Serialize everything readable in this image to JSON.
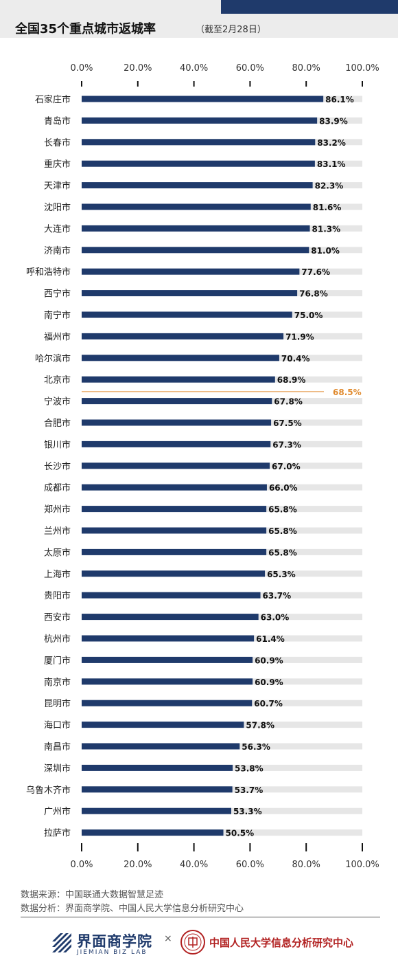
{
  "header": {
    "title": "全国35个重点城市返城率",
    "subtitle": "（截至2月28日）",
    "accent_color": "#1f3a6b"
  },
  "chart_data": {
    "type": "bar",
    "orientation": "horizontal",
    "categories": [
      "石家庄市",
      "青岛市",
      "长春市",
      "重庆市",
      "天津市",
      "沈阳市",
      "大连市",
      "济南市",
      "呼和浩特市",
      "西宁市",
      "南宁市",
      "福州市",
      "哈尔滨市",
      "北京市",
      "宁波市",
      "合肥市",
      "银川市",
      "长沙市",
      "成都市",
      "郑州市",
      "兰州市",
      "太原市",
      "上海市",
      "贵阳市",
      "西安市",
      "杭州市",
      "厦门市",
      "南京市",
      "昆明市",
      "海口市",
      "南昌市",
      "深圳市",
      "乌鲁木齐市",
      "广州市",
      "拉萨市"
    ],
    "values": [
      86.1,
      83.9,
      83.2,
      83.1,
      82.3,
      81.6,
      81.3,
      81.0,
      77.6,
      76.8,
      75.0,
      71.9,
      70.4,
      68.9,
      67.8,
      67.5,
      67.3,
      67.0,
      66.0,
      65.8,
      65.8,
      65.8,
      65.3,
      63.7,
      63.0,
      61.4,
      60.9,
      60.9,
      60.7,
      57.8,
      56.3,
      53.8,
      53.7,
      53.3,
      50.5
    ],
    "value_labels": [
      "86.1%",
      "83.9%",
      "83.2%",
      "83.1%",
      "82.3%",
      "81.6%",
      "81.3%",
      "81.0%",
      "77.6%",
      "76.8%",
      "75.0%",
      "71.9%",
      "70.4%",
      "68.9%",
      "67.8%",
      "67.5%",
      "67.3%",
      "67.0%",
      "66.0%",
      "65.8%",
      "65.8%",
      "65.8%",
      "65.3%",
      "63.7%",
      "63.0%",
      "61.4%",
      "60.9%",
      "60.9%",
      "60.7%",
      "57.8%",
      "56.3%",
      "53.8%",
      "53.7%",
      "53.3%",
      "50.5%"
    ],
    "xlim": [
      0,
      100
    ],
    "ticks": [
      0,
      20,
      40,
      60,
      80,
      100
    ],
    "tick_labels": [
      "0.0%",
      "20.0%",
      "40.0%",
      "60.0%",
      "80.0%",
      "100.0%"
    ],
    "reference_line": {
      "value": 68.5,
      "label": "68.5%",
      "color": "#e08a2e"
    },
    "bar_color": "#1f3a6b",
    "track_color": "#e6e6e6",
    "grid": false,
    "title": "全国35个重点城市返城率"
  },
  "footer": {
    "source": "数据来源：中国联通大数据智慧足迹",
    "analysis": "数据分析：界面商学院、中国人民大学信息分析研究中心"
  },
  "logos": {
    "left_name": "界面商学院",
    "left_sub": "JIEMIAN BIZ LAB",
    "left_icon": "jiemian-logo-icon",
    "separator": "×",
    "right_name": "中国人民大学信息分析研究中心",
    "right_icon": "renmin-university-seal-icon"
  }
}
